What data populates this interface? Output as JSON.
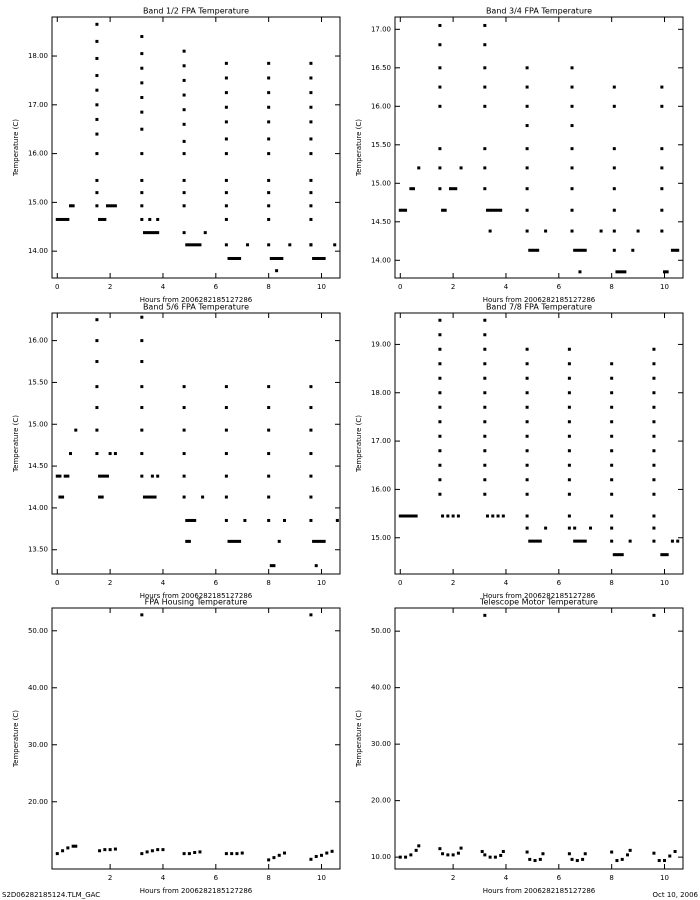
{
  "chart_data": [
    {
      "type": "scatter",
      "title": "Band 1/2 FPA Temperature",
      "x_label": "Hours from 2006282185127286",
      "y_label": "Temperature (C)",
      "color": "#000000",
      "xlim": [
        -0.2,
        10.7
      ],
      "ylim": [
        13.45,
        18.8
      ],
      "xticks": [
        0,
        2,
        4,
        6,
        8,
        10
      ],
      "yticks": [
        {
          "value": 14,
          "label": "14.00"
        },
        {
          "value": 15,
          "label": "15.00"
        },
        {
          "value": 16,
          "label": "16.00"
        },
        {
          "value": 17,
          "label": "17.00"
        },
        {
          "value": 18,
          "label": "18.00"
        }
      ],
      "x": [
        0,
        0.1,
        0.2,
        0.3,
        0.4,
        0.5,
        0.6,
        1.5,
        1.5,
        1.5,
        1.5,
        1.5,
        1.5,
        1.5,
        1.5,
        1.5,
        1.5,
        1.5,
        1.5,
        1.6,
        1.7,
        1.8,
        1.9,
        2.0,
        2.1,
        2.2,
        3.2,
        3.2,
        3.2,
        3.2,
        3.2,
        3.2,
        3.2,
        3.2,
        3.2,
        3.2,
        3.2,
        3.2,
        3.3,
        3.4,
        3.5,
        3.6,
        3.7,
        3.8,
        3.5,
        3.8,
        4.8,
        4.8,
        4.8,
        4.8,
        4.8,
        4.8,
        4.8,
        4.8,
        4.8,
        4.8,
        4.8,
        4.8,
        4.9,
        5.0,
        5.1,
        5.2,
        5.3,
        5.4,
        5.6,
        6.4,
        6.4,
        6.4,
        6.4,
        6.4,
        6.4,
        6.4,
        6.4,
        6.4,
        6.4,
        6.4,
        6.4,
        6.5,
        6.6,
        6.7,
        6.8,
        6.9,
        7.2,
        8.0,
        8.0,
        8.0,
        8.0,
        8.0,
        8.0,
        8.0,
        8.0,
        8.0,
        8.0,
        8.0,
        8.0,
        8.1,
        8.2,
        8.3,
        8.4,
        8.5,
        8.3,
        8.8,
        9.6,
        9.6,
        9.6,
        9.6,
        9.6,
        9.6,
        9.6,
        9.6,
        9.6,
        9.6,
        9.6,
        9.6,
        9.7,
        9.8,
        9.9,
        10.0,
        10.1,
        9.6,
        10.5
      ],
      "values": [
        14.65,
        14.65,
        14.65,
        14.65,
        14.65,
        14.93,
        14.93,
        18.65,
        18.3,
        17.95,
        17.6,
        17.3,
        17.0,
        16.7,
        16.4,
        16.0,
        15.45,
        15.2,
        14.93,
        14.65,
        14.65,
        14.65,
        14.93,
        14.93,
        14.93,
        14.93,
        18.4,
        18.05,
        17.75,
        17.45,
        17.15,
        16.85,
        16.5,
        16.0,
        15.45,
        15.2,
        14.93,
        14.65,
        14.38,
        14.38,
        14.38,
        14.38,
        14.38,
        14.38,
        14.65,
        14.65,
        18.1,
        17.8,
        17.5,
        17.2,
        16.9,
        16.6,
        16.25,
        16.0,
        15.45,
        15.2,
        14.93,
        14.38,
        14.13,
        14.13,
        14.13,
        14.13,
        14.13,
        14.13,
        14.38,
        17.85,
        17.55,
        17.25,
        16.95,
        16.65,
        16.3,
        16.0,
        15.45,
        15.2,
        14.93,
        14.65,
        14.13,
        13.85,
        13.85,
        13.85,
        13.85,
        13.85,
        14.13,
        17.85,
        17.55,
        17.25,
        16.95,
        16.65,
        16.3,
        16.0,
        15.45,
        15.2,
        14.93,
        14.65,
        14.13,
        13.85,
        13.85,
        13.85,
        13.85,
        13.85,
        13.6,
        14.13,
        17.85,
        17.55,
        17.25,
        16.95,
        16.65,
        16.3,
        16.0,
        15.45,
        15.2,
        14.93,
        14.65,
        14.13,
        13.85,
        13.85,
        13.85,
        13.85,
        13.85,
        14.13,
        14.13
      ]
    },
    {
      "type": "scatter",
      "title": "Band 3/4 FPA Temperature",
      "x_label": "Hours from 2006282185127286",
      "y_label": "Temperature (C)",
      "color": "#000000",
      "xlim": [
        -0.2,
        10.7
      ],
      "ylim": [
        13.77,
        17.16
      ],
      "xticks": [
        0,
        2,
        4,
        6,
        8,
        10
      ],
      "yticks": [
        {
          "value": 14,
          "label": "14.00"
        },
        {
          "value": 14.5,
          "label": "14.50"
        },
        {
          "value": 15,
          "label": "15.00"
        },
        {
          "value": 15.5,
          "label": "15.50"
        },
        {
          "value": 16,
          "label": "16.00"
        },
        {
          "value": 16.5,
          "label": "16.50"
        },
        {
          "value": 17,
          "label": "17.00"
        }
      ],
      "x": [
        0,
        0.1,
        0.2,
        0.4,
        0.5,
        0.7,
        1.5,
        1.5,
        1.5,
        1.5,
        1.5,
        1.5,
        1.5,
        1.5,
        1.6,
        1.7,
        1.9,
        2.0,
        2.1,
        2.3,
        3.2,
        3.2,
        3.2,
        3.2,
        3.2,
        3.2,
        3.2,
        3.2,
        3.3,
        3.4,
        3.5,
        3.6,
        3.7,
        3.8,
        3.4,
        4.8,
        4.8,
        4.8,
        4.8,
        4.8,
        4.8,
        4.8,
        4.8,
        4.8,
        4.9,
        5.0,
        5.1,
        5.2,
        5.5,
        6.5,
        6.5,
        6.5,
        6.5,
        6.5,
        6.5,
        6.5,
        6.5,
        6.5,
        6.6,
        6.7,
        6.8,
        6.9,
        7.0,
        6.8,
        7.6,
        8.1,
        8.1,
        8.1,
        8.1,
        8.1,
        8.1,
        8.1,
        8.1,
        8.2,
        8.3,
        8.4,
        8.5,
        8.8,
        9.0,
        9.9,
        9.9,
        9.9,
        9.9,
        9.9,
        9.9,
        9.9,
        10.0,
        10.1,
        10.3,
        10.4,
        10.5
      ],
      "values": [
        14.65,
        14.65,
        14.65,
        14.93,
        14.93,
        15.2,
        17.05,
        16.8,
        16.5,
        16.25,
        16.0,
        15.45,
        15.2,
        14.93,
        14.65,
        14.65,
        14.93,
        14.93,
        14.93,
        15.2,
        17.05,
        16.8,
        16.5,
        16.25,
        16.0,
        15.45,
        15.2,
        14.93,
        14.65,
        14.65,
        14.65,
        14.65,
        14.65,
        14.65,
        14.38,
        16.5,
        16.25,
        16.0,
        15.75,
        15.45,
        15.2,
        14.93,
        14.65,
        14.38,
        14.13,
        14.13,
        14.13,
        14.13,
        14.38,
        16.5,
        16.25,
        16.0,
        15.75,
        15.45,
        15.2,
        14.93,
        14.65,
        14.38,
        14.13,
        14.13,
        14.13,
        14.13,
        14.13,
        13.85,
        14.38,
        16.25,
        16.0,
        15.45,
        15.2,
        14.93,
        14.65,
        14.38,
        14.13,
        13.85,
        13.85,
        13.85,
        13.85,
        14.13,
        14.38,
        16.25,
        16.0,
        15.45,
        15.2,
        14.93,
        14.65,
        14.38,
        13.85,
        13.85,
        14.13,
        14.13,
        14.13
      ]
    },
    {
      "type": "scatter",
      "title": "Band 5/6 FPA Temperature",
      "x_label": "Hours from 2006282185127286",
      "y_label": "Temperature (C)",
      "color": "#000000",
      "xlim": [
        -0.2,
        10.7
      ],
      "ylim": [
        13.21,
        16.33
      ],
      "xticks": [
        0,
        2,
        4,
        6,
        8,
        10
      ],
      "yticks": [
        {
          "value": 13.5,
          "label": "13.50"
        },
        {
          "value": 14,
          "label": "14.00"
        },
        {
          "value": 14.5,
          "label": "14.50"
        },
        {
          "value": 15,
          "label": "15.00"
        },
        {
          "value": 15.5,
          "label": "15.50"
        },
        {
          "value": 16,
          "label": "16.00"
        }
      ],
      "x": [
        0,
        0.1,
        0.3,
        0.4,
        0.1,
        0.2,
        0.5,
        0.7,
        1.5,
        1.5,
        1.5,
        1.5,
        1.5,
        1.5,
        1.5,
        1.6,
        1.7,
        1.8,
        1.9,
        1.6,
        1.7,
        2.0,
        2.2,
        3.2,
        3.2,
        3.2,
        3.2,
        3.2,
        3.2,
        3.2,
        3.2,
        3.3,
        3.4,
        3.5,
        3.6,
        3.7,
        3.6,
        3.8,
        4.8,
        4.8,
        4.8,
        4.8,
        4.8,
        4.8,
        4.9,
        5.0,
        5.1,
        5.2,
        4.9,
        5.0,
        5.5,
        6.4,
        6.4,
        6.4,
        6.4,
        6.4,
        6.4,
        6.5,
        6.6,
        6.7,
        6.8,
        6.9,
        6.4,
        7.1,
        8.0,
        8.0,
        8.0,
        8.0,
        8.0,
        8.0,
        8.0,
        8.1,
        8.2,
        8.4,
        8.6,
        9.6,
        9.6,
        9.6,
        9.6,
        9.6,
        9.6,
        9.6,
        9.7,
        9.8,
        9.9,
        10.0,
        10.1,
        9.8,
        10.6
      ],
      "values": [
        14.38,
        14.38,
        14.38,
        14.38,
        14.13,
        14.13,
        14.65,
        14.93,
        16.25,
        16.0,
        15.75,
        15.45,
        15.2,
        14.93,
        14.65,
        14.38,
        14.38,
        14.38,
        14.38,
        14.13,
        14.13,
        14.65,
        14.65,
        16.28,
        16.0,
        15.75,
        15.45,
        15.2,
        14.93,
        14.65,
        14.38,
        14.13,
        14.13,
        14.13,
        14.13,
        14.13,
        14.38,
        14.38,
        15.45,
        15.2,
        14.93,
        14.65,
        14.38,
        14.13,
        13.85,
        13.85,
        13.85,
        13.85,
        13.6,
        13.6,
        14.13,
        15.45,
        15.2,
        14.93,
        14.65,
        14.38,
        14.13,
        13.6,
        13.6,
        13.6,
        13.6,
        13.6,
        13.85,
        13.85,
        15.45,
        15.2,
        14.93,
        14.65,
        14.38,
        14.13,
        13.85,
        13.31,
        13.31,
        13.6,
        13.85,
        15.45,
        15.2,
        14.93,
        14.65,
        14.38,
        14.13,
        13.85,
        13.6,
        13.6,
        13.6,
        13.6,
        13.6,
        13.31,
        13.85
      ]
    },
    {
      "type": "scatter",
      "title": "Band 7/8 FPA Temperature",
      "x_label": "Hours from 2006282185127286",
      "y_label": "Temperature (C)",
      "color": "#000000",
      "xlim": [
        -0.2,
        10.7
      ],
      "ylim": [
        14.25,
        19.65
      ],
      "xticks": [
        0,
        2,
        4,
        6,
        8,
        10
      ],
      "yticks": [
        {
          "value": 15,
          "label": "15.00"
        },
        {
          "value": 16,
          "label": "16.00"
        },
        {
          "value": 17,
          "label": "17.00"
        },
        {
          "value": 18,
          "label": "18.00"
        },
        {
          "value": 19,
          "label": "19.00"
        }
      ],
      "x": [
        0,
        0.1,
        0.2,
        0.3,
        0.4,
        0.5,
        0.6,
        1.5,
        1.5,
        1.5,
        1.5,
        1.5,
        1.5,
        1.5,
        1.5,
        1.5,
        1.5,
        1.5,
        1.5,
        1.5,
        1.6,
        1.8,
        2.0,
        2.2,
        3.2,
        3.2,
        3.2,
        3.2,
        3.2,
        3.2,
        3.2,
        3.2,
        3.2,
        3.2,
        3.2,
        3.2,
        3.2,
        3.3,
        3.5,
        3.7,
        3.9,
        4.8,
        4.8,
        4.8,
        4.8,
        4.8,
        4.8,
        4.8,
        4.8,
        4.8,
        4.8,
        4.8,
        4.8,
        4.8,
        4.9,
        5.0,
        5.1,
        5.2,
        5.3,
        5.5,
        6.4,
        6.4,
        6.4,
        6.4,
        6.4,
        6.4,
        6.4,
        6.4,
        6.4,
        6.4,
        6.4,
        6.4,
        6.4,
        6.6,
        6.7,
        6.8,
        6.9,
        7.0,
        6.6,
        7.2,
        8.0,
        8.0,
        8.0,
        8.0,
        8.0,
        8.0,
        8.0,
        8.0,
        8.0,
        8.0,
        8.0,
        8.0,
        8.0,
        8.1,
        8.2,
        8.3,
        8.4,
        8.7,
        9.6,
        9.6,
        9.6,
        9.6,
        9.6,
        9.6,
        9.6,
        9.6,
        9.6,
        9.6,
        9.6,
        9.6,
        9.6,
        9.6,
        9.9,
        10.0,
        10.1,
        10.3,
        10.5
      ],
      "values": [
        15.45,
        15.45,
        15.45,
        15.45,
        15.45,
        15.45,
        15.45,
        19.5,
        19.2,
        18.9,
        18.6,
        18.3,
        18.0,
        17.7,
        17.4,
        17.1,
        16.8,
        16.5,
        16.2,
        15.9,
        15.45,
        15.45,
        15.45,
        15.45,
        19.5,
        19.2,
        18.9,
        18.6,
        18.3,
        18.0,
        17.7,
        17.4,
        17.1,
        16.8,
        16.5,
        16.2,
        15.9,
        15.45,
        15.45,
        15.45,
        15.45,
        18.9,
        18.6,
        18.3,
        18.0,
        17.7,
        17.4,
        17.1,
        16.8,
        16.5,
        16.2,
        15.9,
        15.45,
        15.2,
        14.93,
        14.93,
        14.93,
        14.93,
        14.93,
        15.2,
        18.9,
        18.6,
        18.3,
        18.0,
        17.7,
        17.4,
        17.1,
        16.8,
        16.5,
        16.2,
        15.9,
        15.45,
        15.2,
        14.93,
        14.93,
        14.93,
        14.93,
        14.93,
        15.2,
        15.2,
        18.6,
        18.3,
        18.0,
        17.7,
        17.4,
        17.1,
        16.8,
        16.5,
        16.2,
        15.9,
        15.45,
        15.2,
        14.93,
        14.65,
        14.65,
        14.65,
        14.65,
        14.93,
        18.9,
        18.6,
        18.3,
        18.0,
        17.7,
        17.4,
        17.1,
        16.8,
        16.5,
        16.2,
        15.9,
        15.45,
        15.2,
        14.93,
        14.65,
        14.65,
        14.65,
        14.93,
        14.93
      ]
    },
    {
      "type": "scatter",
      "title": "FPA Housing Temperature",
      "x_label": "Hours from 2006282185127286",
      "y_label": "Temperature (C)",
      "color": "#000000",
      "xlim": [
        -0.2,
        10.7
      ],
      "ylim": [
        8.2,
        54
      ],
      "xticks": [
        2,
        4,
        6,
        8,
        10
      ],
      "yticks": [
        {
          "value": 20,
          "label": "20.00"
        },
        {
          "value": 30,
          "label": "30.00"
        },
        {
          "value": 40,
          "label": "40.00"
        },
        {
          "value": 50,
          "label": "50.00"
        }
      ],
      "x": [
        0,
        0.2,
        0.4,
        0.6,
        0.7,
        1.6,
        1.8,
        2.0,
        2.2,
        3.2,
        3.4,
        3.6,
        3.8,
        4.0,
        4.8,
        5.0,
        5.2,
        5.4,
        6.4,
        6.6,
        6.8,
        7.0,
        8.0,
        8.2,
        8.4,
        8.6,
        9.6,
        9.8,
        10.0,
        10.2,
        10.4,
        3.2,
        9.6
      ],
      "values": [
        10.9,
        11.4,
        11.9,
        12.2,
        12.2,
        11.4,
        11.6,
        11.6,
        11.7,
        10.9,
        11.2,
        11.4,
        11.6,
        11.6,
        10.9,
        10.9,
        11.1,
        11.2,
        10.9,
        10.9,
        10.9,
        11.0,
        9.8,
        10.2,
        10.6,
        11.0,
        9.9,
        10.4,
        10.6,
        11.0,
        11.3,
        52.8,
        52.8
      ]
    },
    {
      "type": "scatter",
      "title": "Telescope Motor Temperature",
      "x_label": "Hours from 2006282185127286",
      "y_label": "Temperature (C)",
      "color": "#000000",
      "xlim": [
        -0.2,
        10.7
      ],
      "ylim": [
        7.9,
        54.1
      ],
      "xticks": [
        2,
        4,
        6,
        8,
        10
      ],
      "yticks": [
        {
          "value": 10,
          "label": "10.00"
        },
        {
          "value": 20,
          "label": "20.00"
        },
        {
          "value": 30,
          "label": "30.00"
        },
        {
          "value": 40,
          "label": "40.00"
        },
        {
          "value": 50,
          "label": "50.00"
        }
      ],
      "x": [
        0,
        0.2,
        0.4,
        0.6,
        0.7,
        1.5,
        1.6,
        1.8,
        2.0,
        2.2,
        2.3,
        3.1,
        3.2,
        3.4,
        3.6,
        3.8,
        3.9,
        4.8,
        4.9,
        5.1,
        5.3,
        5.4,
        6.4,
        6.5,
        6.7,
        6.9,
        7.0,
        8.0,
        8.2,
        8.4,
        8.6,
        8.7,
        9.6,
        9.8,
        10.0,
        10.2,
        10.4,
        3.2,
        9.6
      ],
      "values": [
        10.0,
        10.0,
        10.4,
        11.2,
        12.0,
        11.5,
        10.6,
        10.4,
        10.4,
        10.7,
        11.6,
        11.0,
        10.4,
        10.0,
        10.0,
        10.3,
        11.0,
        10.9,
        9.6,
        9.4,
        9.6,
        10.6,
        10.6,
        9.6,
        9.4,
        9.6,
        10.6,
        10.9,
        9.4,
        9.6,
        10.4,
        11.2,
        10.7,
        9.4,
        9.4,
        10.2,
        11.0,
        52.8,
        52.8
      ]
    }
  ],
  "footer": {
    "left": "S2D06282185124.TLM_GAC",
    "right": "Oct 10, 2006"
  }
}
